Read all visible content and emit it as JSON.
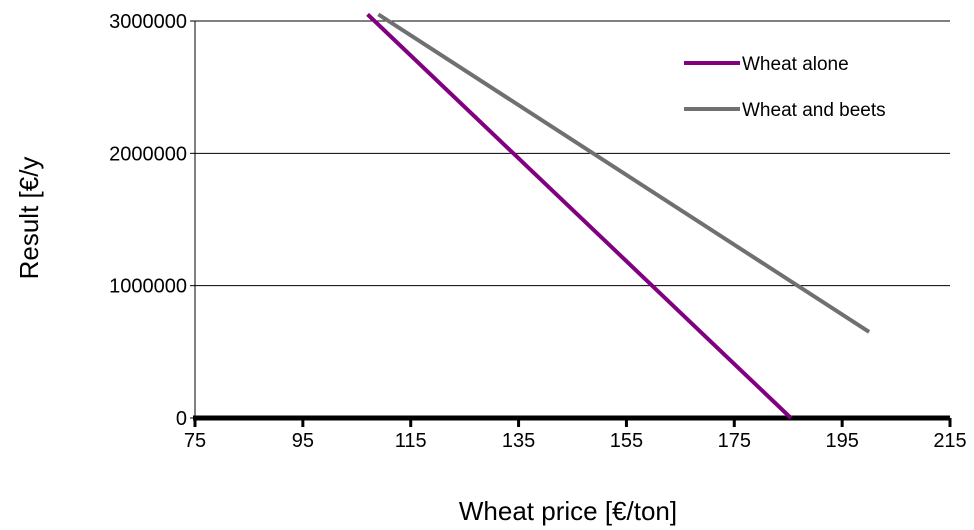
{
  "chart_data": {
    "type": "line",
    "title": "",
    "xlabel": "Wheat price [€/ton]",
    "ylabel": "Result [€/y",
    "xlim": [
      75,
      215
    ],
    "ylim": [
      0,
      3000000
    ],
    "x_ticks": [
      "75",
      "95",
      "115",
      "135",
      "155",
      "175",
      "195",
      "215"
    ],
    "y_ticks": [
      "0",
      "1000000",
      "2000000",
      "3000000"
    ],
    "grid": "horizontal",
    "legend_position": "top-right",
    "series": [
      {
        "name": "Wheat alone",
        "color": "#800080",
        "x": [
          107,
          185.5
        ],
        "y": [
          3050000,
          0
        ]
      },
      {
        "name": "Wheat and beets",
        "color": "#707070",
        "x": [
          109,
          200
        ],
        "y": [
          3050000,
          650000
        ]
      }
    ]
  }
}
